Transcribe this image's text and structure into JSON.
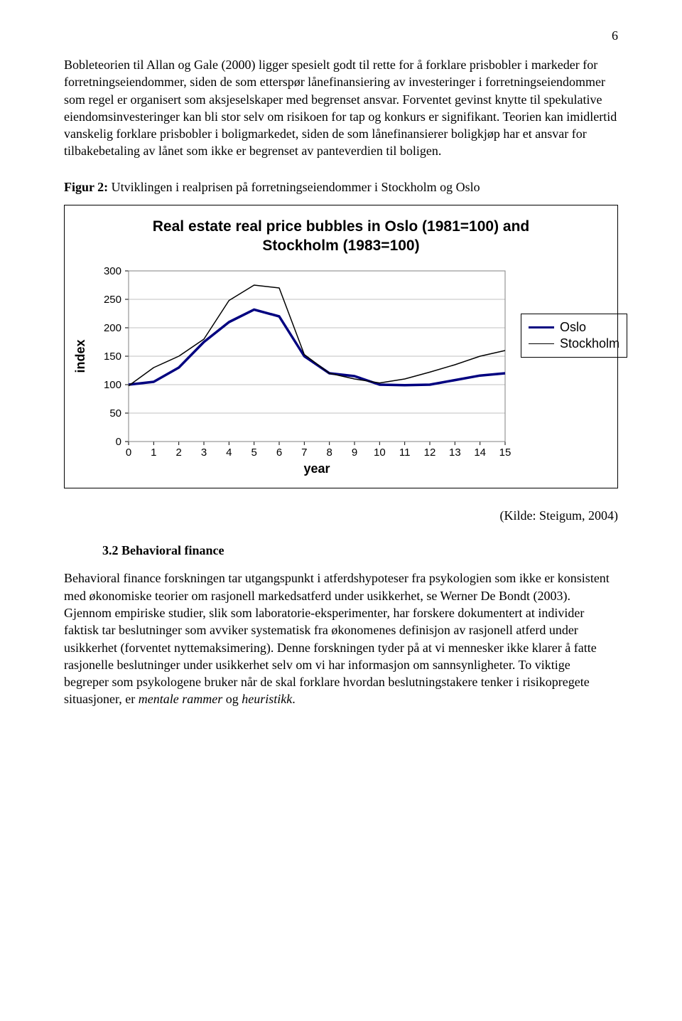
{
  "page_number": "6",
  "paragraph_1": "Bobleteorien til Allan og Gale (2000) ligger spesielt godt til rette for å forklare prisbobler i markeder for forretningseiendommer, siden de som etterspør lånefinansiering av investeringer i forretningseiendommer som regel er organisert som aksjeselskaper med begrenset ansvar. Forventet gevinst knytte til spekulative eiendomsinvesteringer kan bli stor selv om risikoen for tap og konkurs er signifikant. Teorien kan imidlertid vanskelig forklare prisbobler i boligmarkedet, siden de som lånefinansierer boligkjøp har et ansvar for tilbakebetaling av lånet som ikke er begrenset av panteverdien til boligen.",
  "figure_label": "Figur 2:",
  "figure_caption": "Utviklingen i realprisen på forretningseiendommer i Stockholm og Oslo",
  "chart": {
    "title_line1": "Real estate real price bubbles in Oslo (1981=100) and",
    "title_line2": "Stockholm (1983=100)",
    "x_label": "year",
    "y_label": "index",
    "x_ticks": [
      "0",
      "1",
      "2",
      "3",
      "4",
      "5",
      "6",
      "7",
      "8",
      "9",
      "10",
      "11",
      "12",
      "13",
      "14",
      "15"
    ],
    "y_ticks": [
      "0",
      "50",
      "100",
      "150",
      "200",
      "250",
      "300"
    ],
    "y_min": 0,
    "y_max": 300,
    "x_min": 0,
    "x_max": 15,
    "plot_bg": "#ffffff",
    "plot_border": "#808080",
    "grid_color": "#c0c0c0",
    "axis_color": "#000000",
    "tick_font_size": 15,
    "label_font_size": 18,
    "series": [
      {
        "name": "Oslo",
        "color": "#000080",
        "width": 3.5,
        "points": [
          [
            0,
            100
          ],
          [
            1,
            105
          ],
          [
            2,
            130
          ],
          [
            3,
            175
          ],
          [
            4,
            210
          ],
          [
            5,
            232
          ],
          [
            6,
            220
          ],
          [
            7,
            150
          ],
          [
            8,
            120
          ],
          [
            9,
            115
          ],
          [
            10,
            100
          ],
          [
            11,
            99
          ],
          [
            12,
            100
          ],
          [
            13,
            108
          ],
          [
            14,
            116
          ],
          [
            15,
            120
          ]
        ]
      },
      {
        "name": "Stockholm",
        "color": "#000000",
        "width": 1.5,
        "points": [
          [
            0,
            98
          ],
          [
            1,
            130
          ],
          [
            2,
            150
          ],
          [
            3,
            180
          ],
          [
            4,
            248
          ],
          [
            5,
            275
          ],
          [
            6,
            270
          ],
          [
            7,
            153
          ],
          [
            8,
            120
          ],
          [
            9,
            110
          ],
          [
            10,
            103
          ],
          [
            11,
            110
          ],
          [
            12,
            122
          ],
          [
            13,
            135
          ],
          [
            14,
            150
          ],
          [
            15,
            160
          ]
        ]
      }
    ],
    "legend": {
      "border": "#000000",
      "items": [
        {
          "label": "Oslo",
          "color": "#000080",
          "width": 3.5
        },
        {
          "label": "Stockholm",
          "color": "#000000",
          "width": 1.5
        }
      ]
    }
  },
  "source": "(Kilde: Steigum, 2004)",
  "section_heading": "3.2 Behavioral finance",
  "paragraph_2_a": "Behavioral finance forskningen tar utgangspunkt i atferdshypoteser fra psykologien som ikke er konsistent med økonomiske teorier om rasjonell markedsatferd under usikkerhet, se Werner De Bondt (2003). Gjennom empiriske studier, slik som laboratorie-eksperimenter, har forskere dokumentert at individer faktisk tar beslutninger som avviker systematisk fra økonomenes definisjon av rasjonell atferd under usikkerhet (forventet nyttemaksimering). Denne forskningen tyder på at vi mennesker ikke klarer å fatte rasjonelle beslutninger under usikkerhet selv om vi har informasjon om sannsynligheter. To viktige begreper som psykologene bruker når de skal forklare hvordan beslutningstakere tenker i risikopregete situasjoner, er ",
  "paragraph_2_italic1": "mentale rammer",
  "paragraph_2_b": " og ",
  "paragraph_2_italic2": "heuristikk",
  "paragraph_2_c": "."
}
